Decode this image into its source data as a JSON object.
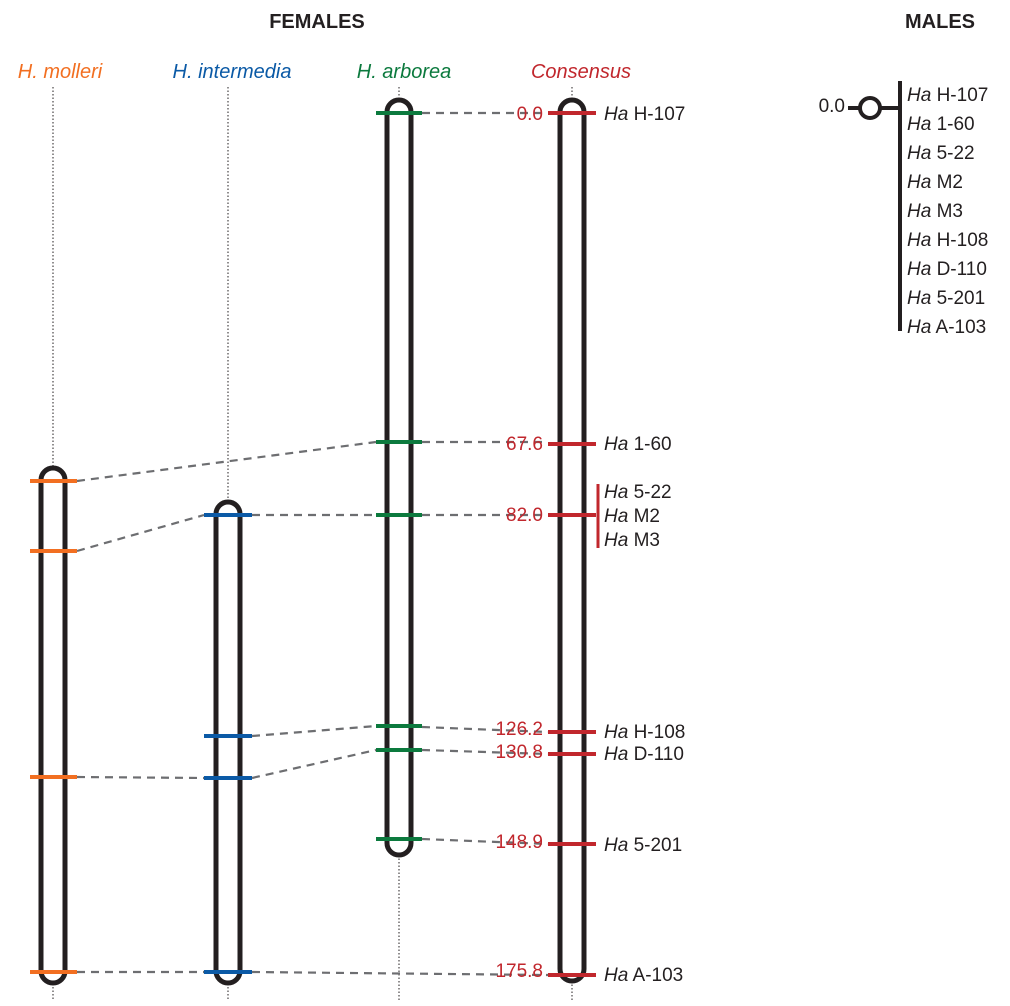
{
  "headers": {
    "females": "FEMALES",
    "males": "MALES"
  },
  "colors": {
    "molleri": "#f26f21",
    "intermedia": "#0b5aa6",
    "arborea": "#0c7a3e",
    "consensus": "#c1272d",
    "chromosome": "#231f20",
    "link": "#6d6e71"
  },
  "females": {
    "maps": [
      {
        "key": "molleri",
        "label": "H. molleri",
        "loci": 4
      },
      {
        "key": "intermedia",
        "label": "H. intermedia",
        "loci": 4
      },
      {
        "key": "arborea",
        "label": "H. arborea",
        "loci": 7
      },
      {
        "key": "consensus",
        "label": "Consensus",
        "markers": [
          {
            "pos": "0.0",
            "genus": "Ha",
            "locus": "H-107"
          },
          {
            "pos": "67.6",
            "genus": "Ha",
            "locus": "1-60"
          },
          {
            "pos": "82.0",
            "genus": "Ha",
            "locus": "5-22",
            "locus2": "M2",
            "locus3": "M3"
          },
          {
            "pos": "126.2",
            "genus": "Ha",
            "locus": "H-108"
          },
          {
            "pos": "130.8",
            "genus": "Ha",
            "locus": "D-110"
          },
          {
            "pos": "148.9",
            "genus": "Ha",
            "locus": "5-201"
          },
          {
            "pos": "175.8",
            "genus": "Ha",
            "locus": "A-103"
          }
        ]
      }
    ]
  },
  "males": {
    "pos": "0.0",
    "markers": [
      {
        "genus": "Ha",
        "locus": "H-107"
      },
      {
        "genus": "Ha",
        "locus": "1-60"
      },
      {
        "genus": "Ha",
        "locus": "5-22"
      },
      {
        "genus": "Ha",
        "locus": "M2"
      },
      {
        "genus": "Ha",
        "locus": "M3"
      },
      {
        "genus": "Ha",
        "locus": "H-108"
      },
      {
        "genus": "Ha",
        "locus": "D-110"
      },
      {
        "genus": "Ha",
        "locus": "5-201"
      },
      {
        "genus": "Ha",
        "locus": "A-103"
      }
    ]
  }
}
